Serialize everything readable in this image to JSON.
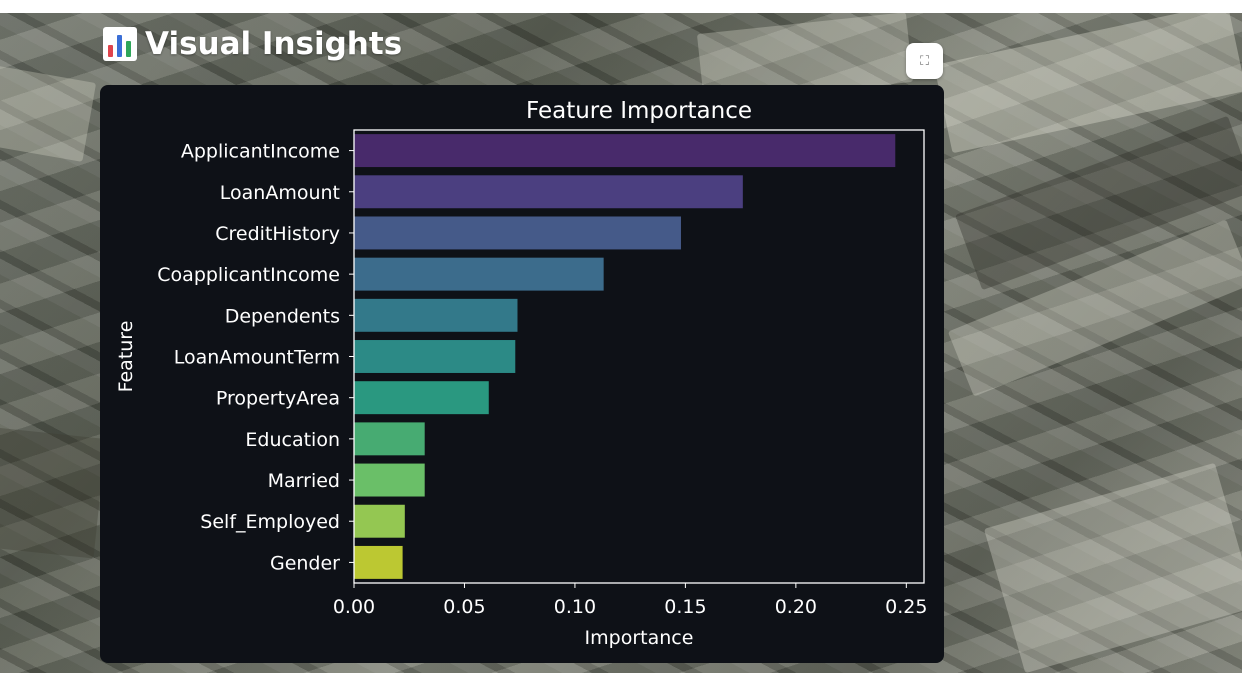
{
  "header": {
    "title": "Visual Insights",
    "icon": "bar-chart-emoji-icon",
    "fullscreen_icon": "expand-icon"
  },
  "colors": {
    "panel_background": "#0e1117",
    "text": "#ffffff"
  },
  "chart_data": {
    "type": "bar",
    "orientation": "horizontal",
    "title": "Feature Importance",
    "xlabel": "Importance",
    "ylabel": "Feature",
    "xlim": [
      0,
      0.258
    ],
    "xticks": [
      0.0,
      0.05,
      0.1,
      0.15,
      0.2,
      0.25
    ],
    "xtick_labels": [
      "0.00",
      "0.05",
      "0.10",
      "0.15",
      "0.20",
      "0.25"
    ],
    "categories": [
      "ApplicantIncome",
      "LoanAmount",
      "CreditHistory",
      "CoapplicantIncome",
      "Dependents",
      "LoanAmountTerm",
      "PropertyArea",
      "Education",
      "Married",
      "Self_Employed",
      "Gender"
    ],
    "values": [
      0.245,
      0.176,
      0.148,
      0.113,
      0.074,
      0.073,
      0.061,
      0.032,
      0.032,
      0.023,
      0.022
    ],
    "colors": [
      "#482a6b",
      "#4b3f80",
      "#455a89",
      "#3c6c8c",
      "#33798a",
      "#2c8a86",
      "#2a9880",
      "#47ab72",
      "#6abf68",
      "#94c752",
      "#bcc832"
    ],
    "grid": false,
    "legend": "none"
  }
}
